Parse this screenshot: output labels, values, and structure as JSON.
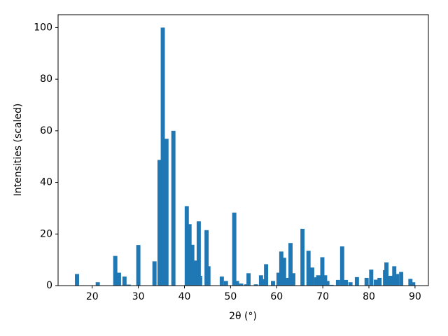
{
  "chart_data": {
    "type": "bar",
    "xlabel": "2θ (°)",
    "ylabel": "Intensities (scaled)",
    "color": "#1f77b4",
    "x": [
      16.7,
      21.2,
      25.0,
      25.8,
      27.0,
      27.9,
      30.0,
      33.5,
      34.6,
      35.3,
      36.1,
      37.6,
      40.5,
      41.1,
      41.7,
      42.3,
      43.1,
      43.4,
      44.8,
      45.2,
      48.1,
      49.0,
      50.8,
      51.4,
      52.3,
      53.4,
      53.9,
      55.5,
      56.6,
      57.2,
      57.7,
      59.2,
      60.4,
      61.0,
      61.6,
      62.2,
      63.0,
      63.6,
      65.6,
      66.9,
      67.7,
      68.6,
      69.0,
      69.9,
      70.5,
      71.0,
      71.9,
      73.3,
      74.2,
      75.0,
      76.0,
      77.4,
      79.5,
      80.5,
      81.5,
      82.3,
      83.5,
      83.8,
      84.7,
      85.5,
      86.1,
      87.0,
      89.0,
      89.6
    ],
    "values": [
      4.5,
      1.3,
      11.5,
      5,
      3.5,
      0.4,
      15.7,
      9.4,
      48.7,
      100,
      56.9,
      60,
      30.8,
      23.8,
      15.8,
      9.7,
      24.9,
      3.8,
      21.5,
      7.5,
      3.5,
      1.8,
      28.3,
      1.8,
      0.8,
      0.5,
      4.8,
      0.5,
      4.0,
      2.5,
      8.3,
      1.8,
      5,
      13.2,
      10.8,
      3,
      16.5,
      4.8,
      22,
      13.5,
      7,
      3.2,
      4,
      11,
      4,
      1.8,
      0.3,
      2.2,
      15.2,
      2.2,
      1.3,
      3.3,
      3,
      6.2,
      2.3,
      3,
      6,
      9,
      3.8,
      7.5,
      4.5,
      5.3,
      2.6,
      1.3
    ],
    "xlim": [
      12.6,
      92.9
    ],
    "ylim": [
      0,
      105
    ],
    "xticks": [
      20,
      30,
      40,
      50,
      60,
      70,
      80,
      90
    ],
    "yticks": [
      0,
      20,
      40,
      60,
      80,
      100
    ]
  }
}
